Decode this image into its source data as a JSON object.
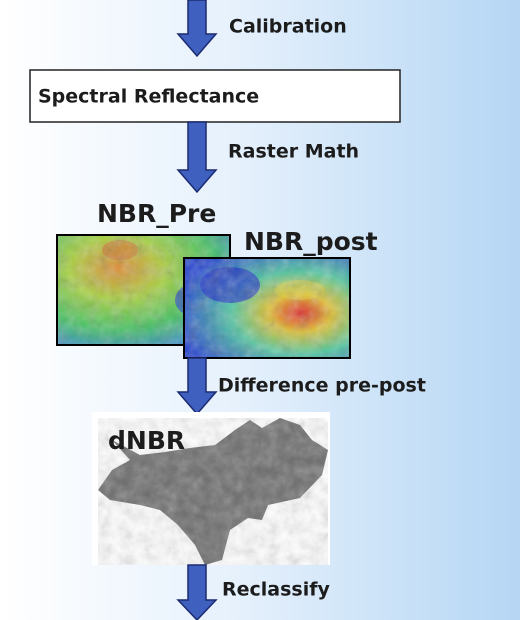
{
  "steps": {
    "calibration": "Calibration",
    "spectral_reflectance": "Spectral Reflectance",
    "raster_math": "Raster Math",
    "nbr_pre": "NBR_Pre",
    "nbr_post": "NBR_post",
    "difference": "Difference pre-post",
    "dnbr": "dNBR",
    "reclassify": "Reclassify"
  }
}
